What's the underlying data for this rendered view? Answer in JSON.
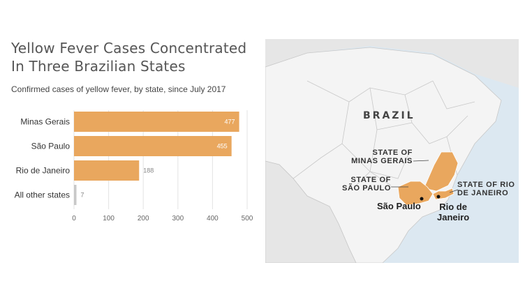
{
  "header": {
    "title_line1": "Yellow Fever Cases Concentrated",
    "title_line2": "In Three Brazilian States",
    "subtitle": "Confirmed cases of yellow fever, by state, since July 2017"
  },
  "chart_data": {
    "type": "bar",
    "orientation": "horizontal",
    "categories": [
      "Minas Gerais",
      "São Paulo",
      "Rio de Janeiro",
      "All other states"
    ],
    "values": [
      477,
      455,
      188,
      7
    ],
    "data_labels": [
      "477",
      "455",
      "188",
      "7"
    ],
    "xlim": [
      0,
      500
    ],
    "xticks": [
      "0",
      "100",
      "200",
      "300",
      "400",
      "500"
    ],
    "grid": true,
    "bar_colors": [
      "#E9A75E",
      "#E9A75E",
      "#E9A75E",
      "#C8C8C8"
    ]
  },
  "map": {
    "country_label": "BRAZIL",
    "state_minas_line1": "STATE OF",
    "state_minas_line2": "MINAS GERAIS",
    "state_sp_line1": "STATE OF",
    "state_sp_line2": "SÃO PAULO",
    "state_rj_line1": "STATE OF RIO",
    "state_rj_line2": "DE JANEIRO",
    "city_sp": "São Paulo",
    "city_rj_line1": "Rio de",
    "city_rj_line2": "Janeiro",
    "colors": {
      "ocean": "#DCE8F1",
      "land": "#E6E6E6",
      "brazil": "#F4F4F4",
      "highlight": "#E9A75E"
    }
  }
}
